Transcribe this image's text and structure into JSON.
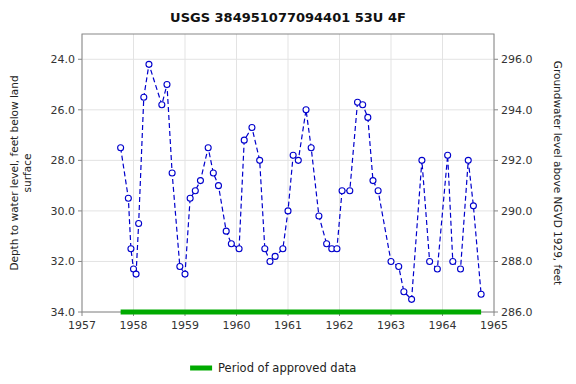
{
  "chart_data": {
    "type": "line",
    "title": "USGS 384951077094401 53U  4F",
    "ylabel": "Depth to water level, feet below land\nsurface",
    "y2label": "Groundwater level above NGVD 1929, feet",
    "xlim": [
      1957,
      1965
    ],
    "xticks": [
      1957,
      1958,
      1959,
      1960,
      1961,
      1962,
      1963,
      1964,
      1965
    ],
    "ylim": [
      34.0,
      23.0
    ],
    "yticks": [
      {
        "value": 24.0,
        "label": "24.0"
      },
      {
        "value": 26.0,
        "label": "26.0"
      },
      {
        "value": 28.0,
        "label": "28.0"
      },
      {
        "value": 30.0,
        "label": "30.0"
      },
      {
        "value": 32.0,
        "label": "32.0"
      },
      {
        "value": 34.0,
        "label": "34.0"
      }
    ],
    "y2lim": [
      286.0,
      297.0
    ],
    "y2ticks": [
      {
        "value": 286.0,
        "label": "286.0"
      },
      {
        "value": 288.0,
        "label": "288.0"
      },
      {
        "value": 290.0,
        "label": "290.0"
      },
      {
        "value": 292.0,
        "label": "292.0"
      },
      {
        "value": 294.0,
        "label": "294.0"
      },
      {
        "value": 296.0,
        "label": "296.0"
      }
    ],
    "grid": true,
    "legend": "bottom",
    "series": [
      {
        "color": "#0000cc",
        "line_style": "dashed",
        "marker": "circle",
        "x": [
          1957.75,
          1957.9,
          1957.95,
          1958.0,
          1958.05,
          1958.1,
          1958.2,
          1958.3,
          1958.55,
          1958.65,
          1958.75,
          1958.9,
          1959.0,
          1959.1,
          1959.2,
          1959.3,
          1959.45,
          1959.55,
          1959.65,
          1959.8,
          1959.9,
          1960.05,
          1960.15,
          1960.3,
          1960.45,
          1960.55,
          1960.65,
          1960.75,
          1960.9,
          1961.0,
          1961.1,
          1961.2,
          1961.35,
          1961.45,
          1961.6,
          1961.75,
          1961.85,
          1961.95,
          1962.05,
          1962.2,
          1962.35,
          1962.45,
          1962.55,
          1962.65,
          1962.75,
          1963.0,
          1963.15,
          1963.25,
          1963.4,
          1963.6,
          1963.75,
          1963.9,
          1964.1,
          1964.2,
          1964.35,
          1964.5,
          1964.6,
          1964.75
        ],
        "values": [
          27.5,
          29.5,
          31.5,
          32.3,
          32.5,
          30.5,
          25.5,
          24.2,
          25.8,
          25.0,
          28.5,
          32.2,
          32.5,
          29.5,
          29.2,
          28.8,
          27.5,
          28.5,
          29.0,
          30.8,
          31.3,
          31.5,
          27.2,
          26.7,
          28.0,
          31.5,
          32.0,
          31.8,
          31.5,
          30.0,
          27.8,
          28.0,
          26.0,
          27.5,
          30.2,
          31.3,
          31.5,
          31.5,
          29.2,
          29.2,
          25.7,
          25.8,
          26.3,
          28.8,
          29.2,
          32.0,
          32.2,
          33.2,
          33.5,
          28.0,
          32.0,
          32.3,
          27.8,
          32.0,
          32.3,
          28.0,
          29.8,
          33.3
        ]
      },
      {
        "name": "Period of approved data",
        "color": "#00aa00",
        "line_style": "solid",
        "x": [
          1957.75,
          1964.75
        ],
        "values": [
          34.0,
          34.0
        ]
      }
    ]
  }
}
